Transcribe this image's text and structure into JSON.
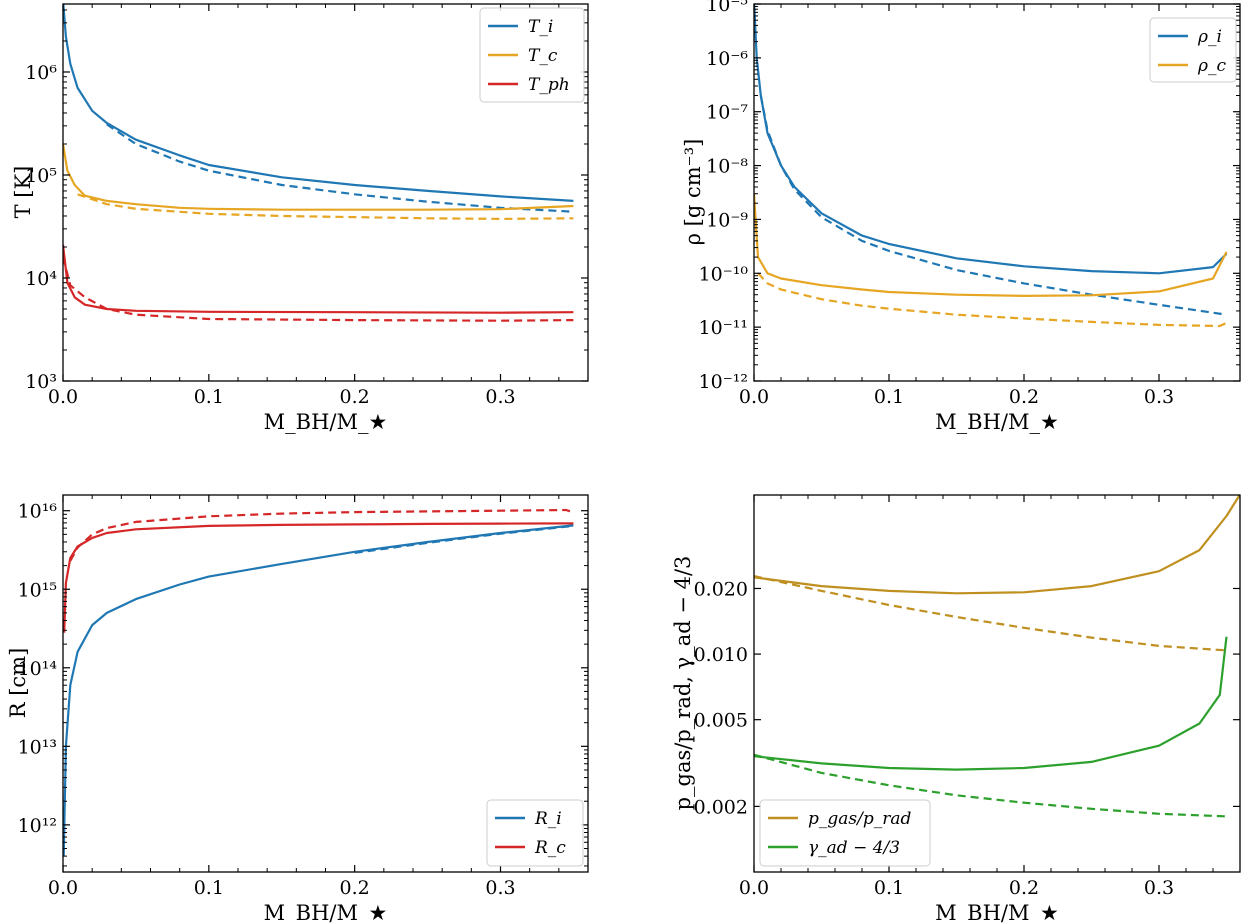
{
  "chart_data": [
    {
      "type": "line",
      "xlabel": "M_BH/M_★",
      "ylabel": "T [K]",
      "yscale": "log",
      "xlim": [
        0,
        0.36
      ],
      "ylim_exp": [
        3,
        6.66
      ],
      "xticks": [
        "0.0",
        "0.1",
        "0.2",
        "0.3"
      ],
      "yticks": [
        {
          "v": 3,
          "label": "10³"
        },
        {
          "v": 4,
          "label": "10⁴"
        },
        {
          "v": 5,
          "label": "10⁵"
        },
        {
          "v": 6,
          "label": "10⁶"
        }
      ],
      "legend_position": "top-right",
      "series": [
        {
          "name": "T_i",
          "color": "#1f77b4",
          "style": "solid",
          "x": [
            0,
            0.002,
            0.005,
            0.01,
            0.02,
            0.03,
            0.05,
            0.08,
            0.1,
            0.15,
            0.2,
            0.25,
            0.3,
            0.35
          ],
          "y": [
            5000000,
            2200000,
            1200000,
            700000,
            420000,
            320000,
            220000,
            155000,
            125000,
            95000,
            80000,
            70000,
            62000,
            56000
          ]
        },
        {
          "name": "",
          "color": "#1f77b4",
          "style": "dashed",
          "x": [
            0.03,
            0.05,
            0.08,
            0.1,
            0.15,
            0.2,
            0.25,
            0.3,
            0.35
          ],
          "y": [
            310000,
            200000,
            135000,
            110000,
            80000,
            65000,
            55000,
            48000,
            44000
          ]
        },
        {
          "name": "T_c",
          "color": "#e6a623",
          "style": "solid",
          "x": [
            0,
            0.003,
            0.008,
            0.015,
            0.03,
            0.05,
            0.08,
            0.1,
            0.15,
            0.2,
            0.25,
            0.3,
            0.35
          ],
          "y": [
            200000,
            110000,
            80000,
            63000,
            56000,
            52000,
            48000,
            47000,
            46000,
            46000,
            46000,
            46500,
            50000
          ]
        },
        {
          "name": "",
          "color": "#e6a623",
          "style": "dashed",
          "x": [
            0.01,
            0.03,
            0.05,
            0.1,
            0.15,
            0.2,
            0.25,
            0.3,
            0.35
          ],
          "y": [
            65000,
            52000,
            47000,
            42000,
            40000,
            39000,
            38000,
            37500,
            38000
          ]
        },
        {
          "name": "T_ph",
          "color": "#d62728",
          "style": "solid",
          "x": [
            0,
            0.003,
            0.008,
            0.015,
            0.03,
            0.05,
            0.1,
            0.2,
            0.3,
            0.35
          ],
          "y": [
            21000,
            9000,
            6500,
            5500,
            5000,
            4800,
            4700,
            4650,
            4600,
            4650
          ]
        },
        {
          "name": "",
          "color": "#d62728",
          "style": "dashed",
          "x": [
            0,
            0.005,
            0.015,
            0.03,
            0.05,
            0.1,
            0.2,
            0.3,
            0.35
          ],
          "y": [
            16000,
            8500,
            6500,
            5000,
            4400,
            4000,
            3900,
            3850,
            3900
          ]
        }
      ]
    },
    {
      "type": "line",
      "xlabel": "M_BH/M_★",
      "ylabel": "ρ [g cm⁻³]",
      "yscale": "log",
      "xlim": [
        0,
        0.36
      ],
      "ylim_exp": [
        -12,
        -5
      ],
      "xticks": [
        "0.0",
        "0.1",
        "0.2",
        "0.3"
      ],
      "yticks": [
        {
          "v": -12,
          "label": "10⁻¹²"
        },
        {
          "v": -11,
          "label": "10⁻¹¹"
        },
        {
          "v": -10,
          "label": "10⁻¹⁰"
        },
        {
          "v": -9,
          "label": "10⁻⁹"
        },
        {
          "v": -8,
          "label": "10⁻⁸"
        },
        {
          "v": -7,
          "label": "10⁻⁷"
        },
        {
          "v": -6,
          "label": "10⁻⁶"
        },
        {
          "v": -5,
          "label": "10⁻⁵"
        }
      ],
      "legend_position": "top-right",
      "series": [
        {
          "name": "ρ_i",
          "color": "#1f77b4",
          "style": "solid",
          "x": [
            0,
            0.002,
            0.005,
            0.01,
            0.02,
            0.03,
            0.05,
            0.08,
            0.1,
            0.15,
            0.2,
            0.25,
            0.3,
            0.34,
            0.35
          ],
          "y": [
            1.2e-05,
            1e-06,
            2e-07,
            4e-08,
            1e-08,
            4e-09,
            1.3e-09,
            5e-10,
            3.5e-10,
            1.9e-10,
            1.35e-10,
            1.1e-10,
            1e-10,
            1.3e-10,
            2.3e-10
          ]
        },
        {
          "name": "",
          "color": "#1f77b4",
          "style": "dashed",
          "x": [
            0.005,
            0.01,
            0.02,
            0.03,
            0.05,
            0.08,
            0.1,
            0.15,
            0.2,
            0.25,
            0.3,
            0.35
          ],
          "y": [
            2e-07,
            4.5e-08,
            1e-08,
            3.6e-09,
            1.1e-09,
            4e-10,
            2.6e-10,
            1.15e-10,
            6.5e-11,
            4e-11,
            2.6e-11,
            1.7e-11
          ]
        },
        {
          "name": "ρ_c",
          "color": "#e6a623",
          "style": "solid",
          "x": [
            0,
            0.003,
            0.01,
            0.02,
            0.05,
            0.08,
            0.1,
            0.15,
            0.2,
            0.25,
            0.3,
            0.34,
            0.35
          ],
          "y": [
            3e-09,
            2e-10,
            1e-10,
            8e-11,
            6e-11,
            5e-11,
            4.5e-11,
            4e-11,
            3.8e-11,
            3.9e-11,
            4.6e-11,
            8e-11,
            2.5e-10
          ]
        },
        {
          "name": "",
          "color": "#e6a623",
          "style": "dashed",
          "x": [
            0.003,
            0.01,
            0.02,
            0.05,
            0.08,
            0.1,
            0.15,
            0.2,
            0.25,
            0.3,
            0.345,
            0.35
          ],
          "y": [
            1e-10,
            6.5e-11,
            5e-11,
            3.3e-11,
            2.5e-11,
            2.2e-11,
            1.7e-11,
            1.45e-11,
            1.25e-11,
            1.1e-11,
            1.05e-11,
            1.2e-11
          ]
        }
      ]
    },
    {
      "type": "line",
      "xlabel": "M_BH/M_★",
      "ylabel": "R [cm]",
      "yscale": "log",
      "xlim": [
        0,
        0.36
      ],
      "ylim_exp": [
        11.4,
        16.2
      ],
      "xticks": [
        "0.0",
        "0.1",
        "0.2",
        "0.3"
      ],
      "yticks": [
        {
          "v": 12,
          "label": "10¹²"
        },
        {
          "v": 13,
          "label": "10¹³"
        },
        {
          "v": 14,
          "label": "10¹⁴"
        },
        {
          "v": 15,
          "label": "10¹⁵"
        },
        {
          "v": 16,
          "label": "10¹⁶"
        }
      ],
      "legend_position": "bottom-right",
      "series": [
        {
          "name": "R_i",
          "color": "#1f77b4",
          "style": "solid",
          "x": [
            0.0005,
            0.002,
            0.005,
            0.01,
            0.02,
            0.03,
            0.05,
            0.08,
            0.1,
            0.15,
            0.2,
            0.25,
            0.3,
            0.35
          ],
          "y": [
            400000000000.0,
            10000000000000.0,
            60000000000000.0,
            160000000000000.0,
            350000000000000.0,
            500000000000000.0,
            750000000000000.0,
            1150000000000000.0,
            1450000000000000.0,
            2100000000000000.0,
            3000000000000000.0,
            4000000000000000.0,
            5200000000000000.0,
            6500000000000000.0
          ]
        },
        {
          "name": "",
          "color": "#1f77b4",
          "style": "dashed",
          "x": [
            0.2,
            0.25,
            0.3,
            0.35
          ],
          "y": [
            2900000000000000.0,
            3900000000000000.0,
            5100000000000000.0,
            6400000000000000.0
          ]
        },
        {
          "name": "R_c",
          "color": "#d62728",
          "style": "solid",
          "x": [
            0.0008,
            0.002,
            0.005,
            0.01,
            0.02,
            0.03,
            0.05,
            0.1,
            0.15,
            0.2,
            0.25,
            0.3,
            0.35
          ],
          "y": [
            280000000000000.0,
            1200000000000000.0,
            2500000000000000.0,
            3500000000000000.0,
            4500000000000000.0,
            5200000000000000.0,
            5800000000000000.0,
            6400000000000000.0,
            6600000000000000.0,
            6700000000000000.0,
            6800000000000000.0,
            6850000000000000.0,
            6900000000000000.0
          ]
        },
        {
          "name": "",
          "color": "#d62728",
          "style": "dashed",
          "x": [
            0.005,
            0.01,
            0.02,
            0.03,
            0.05,
            0.1,
            0.15,
            0.2,
            0.25,
            0.3,
            0.345,
            0.35
          ],
          "y": [
            2300000000000000.0,
            3400000000000000.0,
            5000000000000000.0,
            6000000000000000.0,
            7200000000000000.0,
            8500000000000000.0,
            9200000000000000.0,
            9600000000000000.0,
            9800000000000000.0,
            1e+16,
            1.02e+16,
            9500000000000000.0
          ]
        }
      ]
    },
    {
      "type": "line",
      "xlabel": "M_BH/M_★",
      "ylabel": "p_gas/p_rad, γ_ad − 4/3",
      "yscale": "log",
      "xlim": [
        0,
        0.36
      ],
      "ylim_exp": [
        -3.0,
        -1.27
      ],
      "xticks": [
        "0.0",
        "0.1",
        "0.2",
        "0.3"
      ],
      "yticks": [
        {
          "v": 0.002,
          "label": "0.002"
        },
        {
          "v": 0.005,
          "label": "0.005"
        },
        {
          "v": 0.01,
          "label": "0.010"
        },
        {
          "v": 0.02,
          "label": "0.020"
        }
      ],
      "legend_position": "bottom-left",
      "series": [
        {
          "name": "p_gas/p_rad",
          "color": "#bf8f1f",
          "style": "solid",
          "x": [
            0,
            0.05,
            0.1,
            0.15,
            0.2,
            0.25,
            0.3,
            0.33,
            0.35,
            0.36
          ],
          "y": [
            0.0225,
            0.0205,
            0.0195,
            0.019,
            0.0192,
            0.0205,
            0.024,
            0.03,
            0.043,
            0.054
          ]
        },
        {
          "name": "",
          "color": "#bf8f1f",
          "style": "dashed",
          "x": [
            0,
            0.05,
            0.1,
            0.15,
            0.2,
            0.25,
            0.3,
            0.35
          ],
          "y": [
            0.0228,
            0.0195,
            0.0168,
            0.0148,
            0.0132,
            0.0119,
            0.0109,
            0.0104
          ]
        },
        {
          "name": "γ_ad − 4/3",
          "color": "#2ca02c",
          "style": "solid",
          "x": [
            0,
            0.05,
            0.1,
            0.15,
            0.2,
            0.25,
            0.3,
            0.33,
            0.345,
            0.35
          ],
          "y": [
            0.0034,
            0.00315,
            0.003,
            0.00295,
            0.003,
            0.0032,
            0.0038,
            0.0048,
            0.0065,
            0.012
          ]
        },
        {
          "name": "",
          "color": "#2ca02c",
          "style": "dashed",
          "x": [
            0,
            0.05,
            0.1,
            0.15,
            0.2,
            0.25,
            0.3,
            0.35
          ],
          "y": [
            0.00345,
            0.00285,
            0.0025,
            0.00225,
            0.00208,
            0.00195,
            0.00185,
            0.0018
          ]
        }
      ]
    }
  ]
}
